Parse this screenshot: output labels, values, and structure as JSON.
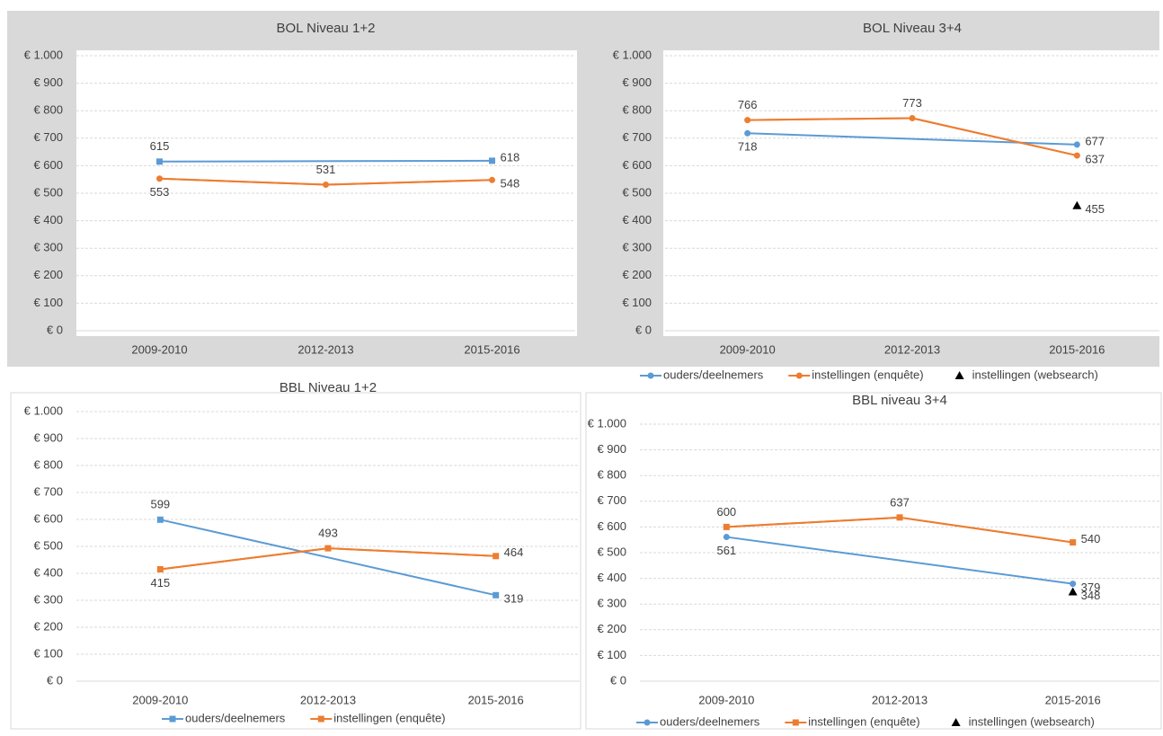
{
  "chart_data": [
    {
      "type": "line",
      "title": "BOL Niveau 1+2",
      "categories": [
        "2009-2010",
        "2012-2013",
        "2015-2016"
      ],
      "series": [
        {
          "color": "#5b9bd5",
          "marker": "square",
          "values": [
            615,
            null,
            618
          ]
        },
        {
          "color": "#ed7d31",
          "marker": "circle",
          "values": [
            553,
            531,
            548
          ]
        }
      ],
      "ylim": [
        0,
        1000
      ],
      "yticks": [
        {
          "value": 0,
          "label": "€ 0"
        },
        {
          "value": 100,
          "label": "€ 100"
        },
        {
          "value": 200,
          "label": "€ 200"
        },
        {
          "value": 300,
          "label": "€ 300"
        },
        {
          "value": 400,
          "label": "€ 400"
        },
        {
          "value": 500,
          "label": "€ 500"
        },
        {
          "value": 600,
          "label": "€ 600"
        },
        {
          "value": 700,
          "label": "€ 700"
        },
        {
          "value": 800,
          "label": "€ 800"
        },
        {
          "value": 900,
          "label": "€ 900"
        },
        {
          "value": 1000,
          "label": "€ 1.000"
        }
      ],
      "grid": true,
      "span_gaps": true
    },
    {
      "type": "line",
      "title": "BOL Niveau 3+4",
      "categories": [
        "2009-2010",
        "2012-2013",
        "2015-2016"
      ],
      "series": [
        {
          "name": "ouders/deelnemers",
          "color": "#5b9bd5",
          "marker": "circle",
          "values": [
            718,
            null,
            677
          ]
        },
        {
          "name": "instellingen (enquête)",
          "color": "#ed7d31",
          "marker": "circle",
          "values": [
            766,
            773,
            637
          ]
        },
        {
          "name": "instellingen (websearch)",
          "color": "#000000",
          "marker": "triangle",
          "line": false,
          "values": [
            null,
            null,
            455
          ]
        }
      ],
      "ylim": [
        0,
        1000
      ],
      "yticks": [
        {
          "value": 0,
          "label": "€ 0"
        },
        {
          "value": 100,
          "label": "€ 100"
        },
        {
          "value": 200,
          "label": "€ 200"
        },
        {
          "value": 300,
          "label": "€ 300"
        },
        {
          "value": 400,
          "label": "€ 400"
        },
        {
          "value": 500,
          "label": "€ 500"
        },
        {
          "value": 600,
          "label": "€ 600"
        },
        {
          "value": 700,
          "label": "€ 700"
        },
        {
          "value": 800,
          "label": "€ 800"
        },
        {
          "value": 900,
          "label": "€ 900"
        },
        {
          "value": 1000,
          "label": "€ 1.000"
        }
      ],
      "grid": true,
      "span_gaps": true,
      "legend": "bottom"
    },
    {
      "type": "line",
      "title": "BBL Niveau 1+2",
      "categories": [
        "2009-2010",
        "2012-2013",
        "2015-2016"
      ],
      "series": [
        {
          "name": "ouders/deelnemers",
          "color": "#5b9bd5",
          "marker": "square",
          "values": [
            599,
            null,
            319
          ]
        },
        {
          "name": "instellingen (enquête)",
          "color": "#ed7d31",
          "marker": "square",
          "values": [
            415,
            493,
            464
          ]
        }
      ],
      "ylim": [
        0,
        1000
      ],
      "yticks": [
        {
          "value": 0,
          "label": "€ 0"
        },
        {
          "value": 100,
          "label": "€ 100"
        },
        {
          "value": 200,
          "label": "€ 200"
        },
        {
          "value": 300,
          "label": "€ 300"
        },
        {
          "value": 400,
          "label": "€ 400"
        },
        {
          "value": 500,
          "label": "€ 500"
        },
        {
          "value": 600,
          "label": "€ 600"
        },
        {
          "value": 700,
          "label": "€ 700"
        },
        {
          "value": 800,
          "label": "€ 800"
        },
        {
          "value": 900,
          "label": "€ 900"
        },
        {
          "value": 1000,
          "label": "€ 1.000"
        }
      ],
      "grid": true,
      "span_gaps": true,
      "legend": "bottom"
    },
    {
      "type": "line",
      "title": "BBL niveau 3+4",
      "categories": [
        "2009-2010",
        "2012-2013",
        "2015-2016"
      ],
      "series": [
        {
          "name": "ouders/deelnemers",
          "color": "#5b9bd5",
          "marker": "circle",
          "values": [
            561,
            null,
            379
          ]
        },
        {
          "name": "instellingen (enquête)",
          "color": "#ed7d31",
          "marker": "square",
          "values": [
            600,
            637,
            540
          ]
        },
        {
          "name": "instellingen (websearch)",
          "color": "#000000",
          "marker": "triangle",
          "line": false,
          "values": [
            null,
            null,
            348
          ]
        }
      ],
      "ylim": [
        0,
        1000
      ],
      "yticks": [
        {
          "value": 0,
          "label": "€ 0"
        },
        {
          "value": 100,
          "label": "€ 100"
        },
        {
          "value": 200,
          "label": "€ 200"
        },
        {
          "value": 300,
          "label": "€ 300"
        },
        {
          "value": 400,
          "label": "€ 400"
        },
        {
          "value": 500,
          "label": "€ 500"
        },
        {
          "value": 600,
          "label": "€ 600"
        },
        {
          "value": 700,
          "label": "€ 700"
        },
        {
          "value": 800,
          "label": "€ 800"
        },
        {
          "value": 900,
          "label": "€ 900"
        },
        {
          "value": 1000,
          "label": "€ 1.000"
        }
      ],
      "grid": true,
      "span_gaps": true,
      "legend": "bottom"
    }
  ]
}
